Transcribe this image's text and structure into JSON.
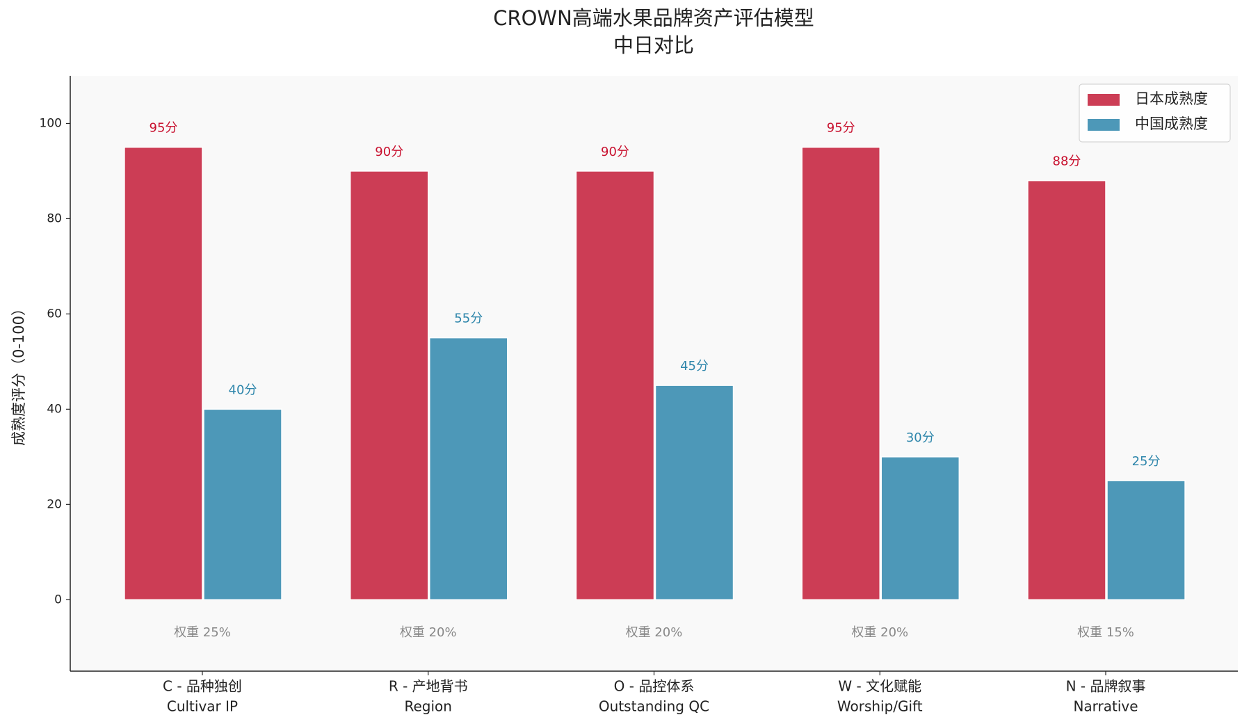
{
  "chart_data": {
    "type": "bar",
    "title": "CROWN高端水果品牌资产评估模型",
    "subtitle": "中日对比",
    "y_label": "成熟度评分（0-100）",
    "categories": [
      [
        "C - 品种独创",
        "Cultivar IP"
      ],
      [
        "R - 产地背书",
        "Region"
      ],
      [
        "O - 品控体系",
        "Outstanding QC"
      ],
      [
        "W - 文化赋能",
        "Worship/Gift"
      ],
      [
        "N - 品牌叙事",
        "Narrative"
      ]
    ],
    "annotations": [
      "权重 25%",
      "权重 20%",
      "权重 20%",
      "权重 20%",
      "权重 15%"
    ],
    "series": [
      {
        "name": "日本成熟度",
        "color": "#cc3d55",
        "label_color": "#c8102e",
        "values": [
          95,
          90,
          90,
          95,
          88
        ],
        "value_labels": [
          "95分",
          "90分",
          "90分",
          "95分",
          "88分"
        ]
      },
      {
        "name": "中国成熟度",
        "color": "#4d98b8",
        "label_color": "#2e86ab",
        "values": [
          40,
          55,
          45,
          30,
          25
        ],
        "value_labels": [
          "40分",
          "55分",
          "45分",
          "30分",
          "25分"
        ]
      }
    ],
    "ylim": [
      -15,
      110
    ],
    "yticks": [
      0,
      20,
      40,
      60,
      80,
      100
    ],
    "legend": "upper right"
  }
}
